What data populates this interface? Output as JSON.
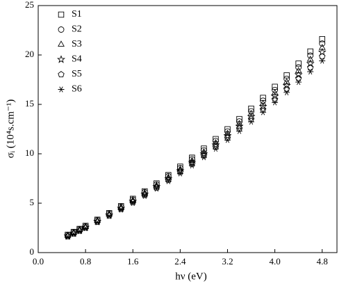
{
  "chart_data": {
    "type": "scatter",
    "xlabel": "hν (eV)",
    "ylabel": "σᵢ (10⁴s.cm⁻¹)",
    "x": [
      0.5,
      0.6,
      0.7,
      0.8,
      1.0,
      1.2,
      1.4,
      1.6,
      1.8,
      2.0,
      2.2,
      2.4,
      2.6,
      2.8,
      3.0,
      3.2,
      3.4,
      3.6,
      3.8,
      4.0,
      4.2,
      4.4,
      4.6,
      4.8
    ],
    "series": [
      {
        "name": "S1",
        "color": "#000000",
        "marker": "square",
        "values": [
          1.8,
          2.09,
          2.39,
          2.7,
          3.33,
          4.0,
          4.7,
          5.44,
          6.2,
          7.0,
          7.84,
          8.7,
          9.6,
          10.53,
          11.49,
          12.48,
          13.51,
          14.57,
          15.66,
          16.78,
          17.94,
          19.13,
          20.35,
          21.6
        ]
      },
      {
        "name": "S2",
        "color": "#000000",
        "marker": "circle",
        "values": [
          1.76,
          2.05,
          2.34,
          2.65,
          3.28,
          3.94,
          4.63,
          5.36,
          6.11,
          6.89,
          7.72,
          8.56,
          9.44,
          10.35,
          11.29,
          12.26,
          13.27,
          14.3,
          15.37,
          16.46,
          17.59,
          18.75,
          19.94,
          21.16
        ]
      },
      {
        "name": "S3",
        "color": "#000000",
        "marker": "triangle",
        "values": [
          1.72,
          2.01,
          2.3,
          2.6,
          3.22,
          3.88,
          4.56,
          5.27,
          6.01,
          6.78,
          7.59,
          8.42,
          9.28,
          10.17,
          11.09,
          12.04,
          13.03,
          14.04,
          15.08,
          16.14,
          17.25,
          18.38,
          19.53,
          20.72
        ]
      },
      {
        "name": "S4",
        "color": "#000000",
        "marker": "star",
        "values": [
          1.68,
          1.96,
          2.25,
          2.56,
          3.17,
          3.81,
          4.48,
          5.19,
          5.92,
          6.68,
          7.47,
          8.28,
          9.13,
          10.0,
          10.9,
          11.83,
          12.78,
          13.77,
          14.78,
          15.83,
          16.9,
          18.0,
          19.13,
          20.29
        ]
      },
      {
        "name": "S5",
        "color": "#000000",
        "marker": "pentagon",
        "values": [
          1.64,
          1.92,
          2.21,
          2.51,
          3.11,
          3.75,
          4.41,
          5.1,
          5.82,
          6.57,
          7.34,
          8.14,
          8.97,
          9.82,
          10.7,
          11.61,
          12.54,
          13.51,
          14.49,
          15.51,
          16.56,
          17.63,
          18.72,
          19.85
        ]
      },
      {
        "name": "S6",
        "color": "#000000",
        "marker": "asterisk",
        "values": [
          1.6,
          1.88,
          2.16,
          2.46,
          3.06,
          3.69,
          4.34,
          5.02,
          5.73,
          6.46,
          7.22,
          8.0,
          8.81,
          9.64,
          10.5,
          11.39,
          12.3,
          13.24,
          14.2,
          15.19,
          16.21,
          17.25,
          18.31,
          19.41
        ]
      }
    ],
    "xlim": [
      0,
      5.05
    ],
    "ylim": [
      0,
      25
    ],
    "xticks": [
      {
        "value": 0,
        "label": "0.0"
      },
      0.8,
      1.6,
      2.4,
      3.2,
      {
        "value": 4,
        "label": "4.0"
      },
      4.8
    ],
    "yticks": [
      0,
      5,
      10,
      15,
      20,
      25
    ],
    "legend": "upper-left",
    "grid": false
  }
}
